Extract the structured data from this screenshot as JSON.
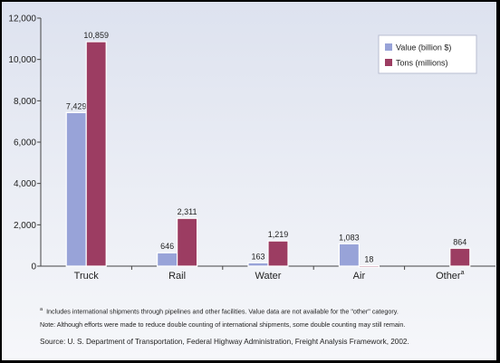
{
  "chart_data": {
    "type": "bar",
    "categories": [
      "Truck",
      "Rail",
      "Water",
      "Air",
      "Other"
    ],
    "category_superscripts": [
      "",
      "",
      "",
      "",
      "a"
    ],
    "series": [
      {
        "name": "Value (billion $)",
        "values": [
          7429,
          646,
          163,
          1083,
          null
        ],
        "labels": [
          "7,429",
          "646",
          "163",
          "1,083",
          ""
        ],
        "color": "#98a3d8"
      },
      {
        "name": "Tons (millions)",
        "values": [
          10859,
          2311,
          1219,
          18,
          864
        ],
        "labels": [
          "10,859",
          "2,311",
          "1,219",
          "18",
          "864"
        ],
        "color": "#9c3d62"
      }
    ],
    "ylim": [
      0,
      12000
    ],
    "yticks": [
      0,
      2000,
      4000,
      6000,
      8000,
      10000,
      12000
    ],
    "ytick_labels": [
      "0",
      "2,000",
      "4,000",
      "6,000",
      "8,000",
      "10,000",
      "12,000"
    ],
    "legend_position": "top-right",
    "grid": false
  },
  "notes": {
    "footnote_marker": "a",
    "footnote": "Includes international shipments through pipelines and other facilities. Value data are not available for the \"other\" category.",
    "note": "Note: Although efforts were made to reduce double counting of international shipments, some double counting may still remain.",
    "source": "Source: U. S. Department of Transportation, Federal Highway Administration, Freight Analysis Framework, 2002."
  }
}
